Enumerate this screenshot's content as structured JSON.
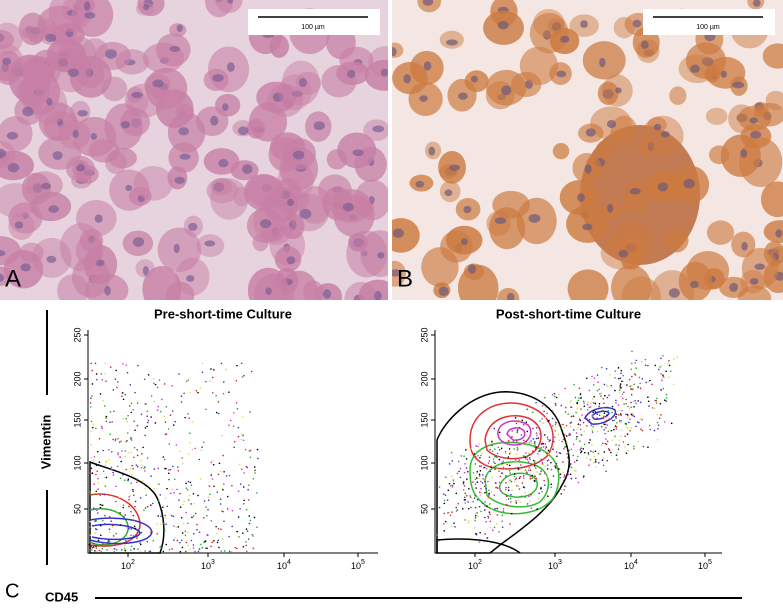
{
  "panels": {
    "a": {
      "label": "A",
      "scale_bar": "100 µm"
    },
    "b": {
      "label": "B",
      "scale_bar": "100 µm"
    },
    "c": {
      "label": "C",
      "y_label": "Vimentin",
      "x_label": "CD45",
      "plots": [
        {
          "title": "Pre-short-time Culture"
        },
        {
          "title": "Post-short-time Culture"
        }
      ],
      "y_ticks": [
        "50",
        "100",
        "150",
        "200",
        "250"
      ],
      "x_ticks": [
        {
          "base": "10",
          "exp": "2"
        },
        {
          "base": "10",
          "exp": "3"
        },
        {
          "base": "10",
          "exp": "4"
        },
        {
          "base": "10",
          "exp": "5"
        }
      ]
    }
  }
}
